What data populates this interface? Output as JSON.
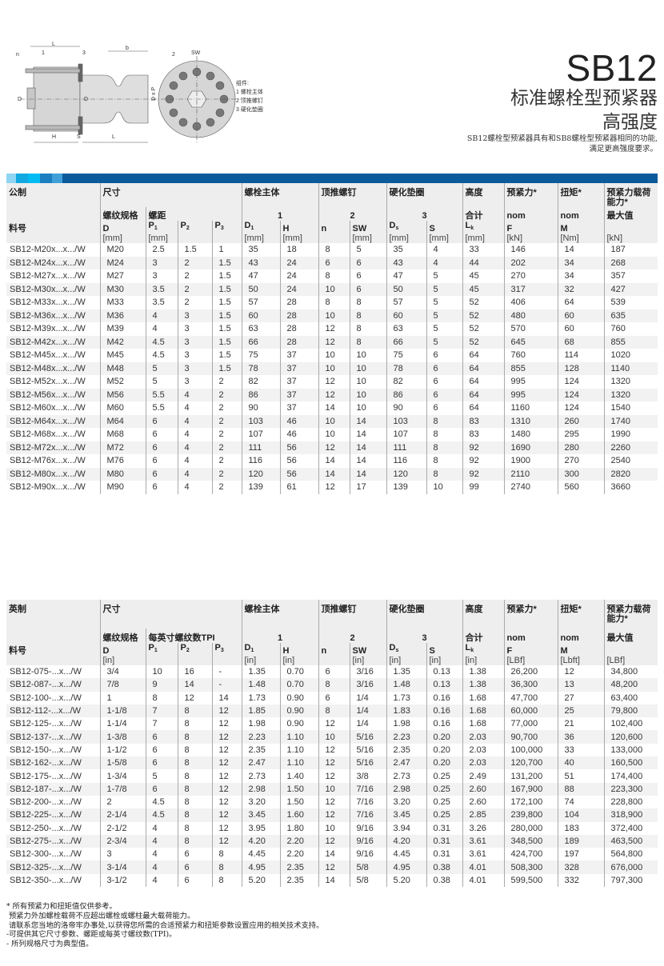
{
  "header": {
    "title": "SB12",
    "subtitle_line1": "标准螺栓型预紧器",
    "subtitle_line2": "高强度",
    "description_line1": "SB12螺栓型预紧器具有和SB8螺栓型预紧器相同的功能,",
    "description_line2": "满足更高强度要求。"
  },
  "diagram": {
    "labels": {
      "n": "n",
      "ly": "L",
      "ly_sub": "y",
      "part1": "1",
      "part3": "3",
      "b": "b",
      "part2": "2",
      "sw": "SW",
      "d1": "D",
      "d1_sub": "1",
      "dt": "D",
      "dt_sub": "t",
      "dxp": "D x P",
      "h": "H",
      "s": "S",
      "l": "L"
    },
    "legend": {
      "title": "组件:",
      "item1": "1 螺栓主体",
      "item2": "2 顶推螺钉",
      "item3": "3 硬化垫圈"
    }
  },
  "colors": {
    "bar_segments": [
      "#8fd4f2",
      "#12a8e0",
      "#00bcf2",
      "#1b7fc2",
      "#3fa0d8"
    ],
    "bar_main": "#0a5a9c",
    "body_gray": "#d6d6d6"
  },
  "metric": {
    "group_label": "公制",
    "part_label": "料号",
    "categories": [
      "尺寸",
      "螺栓主体",
      "顶推螺钉",
      "硬化垫圈",
      "高度",
      "预紧力*",
      "扭矩*",
      "预紧力载荷能力*"
    ],
    "sub": {
      "thread": "螺纹规格",
      "pitch": "螺距",
      "g1": "1",
      "g2": "2",
      "g3": "3",
      "total": "合计",
      "nom1": "nom",
      "nom2": "nom",
      "max": "最大值"
    },
    "symbols": [
      {
        "b": "D"
      },
      {
        "b": "P",
        "s": "1"
      },
      {
        "b": "P",
        "s": "2"
      },
      {
        "b": "P",
        "s": "3"
      },
      {
        "b": "D",
        "s": "1"
      },
      {
        "b": "H"
      },
      {
        "b": "n"
      },
      {
        "b": "SW"
      },
      {
        "b": "D",
        "s": "s"
      },
      {
        "b": "S"
      },
      {
        "b": "L",
        "s": "k"
      },
      {
        "b": "F"
      },
      {
        "b": "M"
      },
      {
        "b": ""
      }
    ],
    "units": [
      "[mm]",
      "[mm]",
      "",
      "",
      "[mm]",
      "[mm]",
      "",
      "[mm]",
      "[mm]",
      "[mm]",
      "[mm]",
      "[kN]",
      "[Nm]",
      "[kN]"
    ],
    "rows": [
      [
        "SB12-M20x...x.../W",
        "M20",
        "2.5",
        "1.5",
        "1",
        "35",
        "18",
        "8",
        "5",
        "35",
        "4",
        "33",
        "146",
        "14",
        "187"
      ],
      [
        "SB12-M24x...x.../W",
        "M24",
        "3",
        "2",
        "1.5",
        "43",
        "24",
        "6",
        "6",
        "43",
        "4",
        "44",
        "202",
        "34",
        "268"
      ],
      [
        "SB12-M27x...x.../W",
        "M27",
        "3",
        "2",
        "1.5",
        "47",
        "24",
        "8",
        "6",
        "47",
        "5",
        "45",
        "270",
        "34",
        "357"
      ],
      [
        "SB12-M30x...x.../W",
        "M30",
        "3.5",
        "2",
        "1.5",
        "50",
        "24",
        "10",
        "6",
        "50",
        "5",
        "45",
        "317",
        "32",
        "427"
      ],
      [
        "SB12-M33x...x.../W",
        "M33",
        "3.5",
        "2",
        "1.5",
        "57",
        "28",
        "8",
        "8",
        "57",
        "5",
        "52",
        "406",
        "64",
        "539"
      ],
      [
        "SB12-M36x...x.../W",
        "M36",
        "4",
        "3",
        "1.5",
        "60",
        "28",
        "10",
        "8",
        "60",
        "5",
        "52",
        "480",
        "60",
        "635"
      ],
      [
        "SB12-M39x...x.../W",
        "M39",
        "4",
        "3",
        "1.5",
        "63",
        "28",
        "12",
        "8",
        "63",
        "5",
        "52",
        "570",
        "60",
        "760"
      ],
      [
        "SB12-M42x...x.../W",
        "M42",
        "4.5",
        "3",
        "1.5",
        "66",
        "28",
        "12",
        "8",
        "66",
        "5",
        "52",
        "645",
        "68",
        "855"
      ],
      [
        "SB12-M45x...x.../W",
        "M45",
        "4.5",
        "3",
        "1.5",
        "75",
        "37",
        "10",
        "10",
        "75",
        "6",
        "64",
        "760",
        "114",
        "1020"
      ],
      [
        "SB12-M48x...x.../W",
        "M48",
        "5",
        "3",
        "1.5",
        "78",
        "37",
        "10",
        "10",
        "78",
        "6",
        "64",
        "855",
        "128",
        "1140"
      ],
      [
        "SB12-M52x...x.../W",
        "M52",
        "5",
        "3",
        "2",
        "82",
        "37",
        "12",
        "10",
        "82",
        "6",
        "64",
        "995",
        "124",
        "1320"
      ],
      [
        "SB12-M56x...x.../W",
        "M56",
        "5.5",
        "4",
        "2",
        "86",
        "37",
        "12",
        "10",
        "86",
        "6",
        "64",
        "995",
        "124",
        "1320"
      ],
      [
        "SB12-M60x...x.../W",
        "M60",
        "5.5",
        "4",
        "2",
        "90",
        "37",
        "14",
        "10",
        "90",
        "6",
        "64",
        "1160",
        "124",
        "1540"
      ],
      [
        "SB12-M64x...x.../W",
        "M64",
        "6",
        "4",
        "2",
        "103",
        "46",
        "10",
        "14",
        "103",
        "8",
        "83",
        "1310",
        "260",
        "1740"
      ],
      [
        "SB12-M68x...x.../W",
        "M68",
        "6",
        "4",
        "2",
        "107",
        "46",
        "10",
        "14",
        "107",
        "8",
        "83",
        "1480",
        "295",
        "1990"
      ],
      [
        "SB12-M72x...x.../W",
        "M72",
        "6",
        "4",
        "2",
        "111",
        "56",
        "12",
        "14",
        "111",
        "8",
        "92",
        "1690",
        "280",
        "2260"
      ],
      [
        "SB12-M76x...x.../W",
        "M76",
        "6",
        "4",
        "2",
        "116",
        "56",
        "14",
        "14",
        "116",
        "8",
        "92",
        "1900",
        "270",
        "2540"
      ],
      [
        "SB12-M80x...x.../W",
        "M80",
        "6",
        "4",
        "2",
        "120",
        "56",
        "14",
        "14",
        "120",
        "8",
        "92",
        "2110",
        "300",
        "2820"
      ],
      [
        "SB12-M90x...x.../W",
        "M90",
        "6",
        "4",
        "2",
        "139",
        "61",
        "12",
        "17",
        "139",
        "10",
        "99",
        "2740",
        "560",
        "3660"
      ]
    ]
  },
  "imperial": {
    "group_label": "英制",
    "part_label": "料号",
    "categories": [
      "尺寸",
      "螺栓主体",
      "顶推螺钉",
      "硬化垫圈",
      "高度",
      "预紧力*",
      "扭矩*",
      "预紧力载荷能力*"
    ],
    "sub": {
      "thread": "螺纹规格",
      "pitch": "每英寸螺纹数TPI",
      "g1": "1",
      "g2": "2",
      "g3": "3",
      "total": "合计",
      "nom1": "nom",
      "nom2": "nom",
      "max": "最大值"
    },
    "symbols": [
      {
        "b": "D"
      },
      {
        "b": "P",
        "s": "1"
      },
      {
        "b": "P",
        "s": "2"
      },
      {
        "b": "P",
        "s": "3"
      },
      {
        "b": "D",
        "s": "1"
      },
      {
        "b": "H"
      },
      {
        "b": "n"
      },
      {
        "b": "SW"
      },
      {
        "b": "D",
        "s": "s"
      },
      {
        "b": "S"
      },
      {
        "b": "L",
        "s": "k"
      },
      {
        "b": "F"
      },
      {
        "b": "M"
      },
      {
        "b": ""
      }
    ],
    "units": [
      "[in]",
      "",
      "",
      "",
      "[in]",
      "[in]",
      "",
      "[in]",
      "[in]",
      "[in]",
      "[in]",
      "[LBf]",
      "[Lbft]",
      "[LBf]"
    ],
    "rows": [
      [
        "SB12-075-...x.../W",
        "3/4",
        "10",
        "16",
        "-",
        "1.35",
        "0.70",
        "6",
        "3/16",
        "1.35",
        "0.13",
        "1.38",
        "26,200",
        "12",
        "34,800"
      ],
      [
        "SB12-087-...x.../W",
        "7/8",
        "9",
        "14",
        "-",
        "1.48",
        "0.70",
        "8",
        "3/16",
        "1.48",
        "0.13",
        "1.38",
        "36,300",
        "13",
        "48,200"
      ],
      [
        "SB12-100-...x.../W",
        "1",
        "8",
        "12",
        "14",
        "1.73",
        "0.90",
        "6",
        "1/4",
        "1.73",
        "0.16",
        "1.68",
        "47,700",
        "27",
        "63,400"
      ],
      [
        "SB12-112-...x.../W",
        "1-1/8",
        "7",
        "8",
        "12",
        "1.85",
        "0.90",
        "8",
        "1/4",
        "1.83",
        "0.16",
        "1.68",
        "60,000",
        "25",
        "79,800"
      ],
      [
        "SB12-125-...x.../W",
        "1-1/4",
        "7",
        "8",
        "12",
        "1.98",
        "0.90",
        "12",
        "1/4",
        "1.98",
        "0.16",
        "1.68",
        "77,000",
        "21",
        "102,400"
      ],
      [
        "SB12-137-...x.../W",
        "1-3/8",
        "6",
        "8",
        "12",
        "2.23",
        "1.10",
        "10",
        "5/16",
        "2.23",
        "0.20",
        "2.03",
        "90,700",
        "36",
        "120,600"
      ],
      [
        "SB12-150-...x.../W",
        "1-1/2",
        "6",
        "8",
        "12",
        "2.35",
        "1.10",
        "12",
        "5/16",
        "2.35",
        "0.20",
        "2.03",
        "100,000",
        "33",
        "133,000"
      ],
      [
        "SB12-162-...x.../W",
        "1-5/8",
        "6",
        "8",
        "12",
        "2.47",
        "1.10",
        "12",
        "5/16",
        "2.47",
        "0.20",
        "2.03",
        "120,700",
        "40",
        "160,500"
      ],
      [
        "SB12-175-...x.../W",
        "1-3/4",
        "5",
        "8",
        "12",
        "2.73",
        "1.40",
        "12",
        "3/8",
        "2.73",
        "0.25",
        "2.49",
        "131,200",
        "51",
        "174,400"
      ],
      [
        "SB12-187-...x.../W",
        "1-7/8",
        "6",
        "8",
        "12",
        "2.98",
        "1.50",
        "10",
        "7/16",
        "2.98",
        "0.25",
        "2.60",
        "167,900",
        "88",
        "223,300"
      ],
      [
        "SB12-200-...x.../W",
        "2",
        "4.5",
        "8",
        "12",
        "3.20",
        "1.50",
        "12",
        "7/16",
        "3.20",
        "0.25",
        "2.60",
        "172,100",
        "74",
        "228,800"
      ],
      [
        "SB12-225-...x.../W",
        "2-1/4",
        "4.5",
        "8",
        "12",
        "3.45",
        "1.60",
        "12",
        "7/16",
        "3.45",
        "0.25",
        "2.85",
        "239,800",
        "104",
        "318,900"
      ],
      [
        "SB12-250-...x.../W",
        "2-1/2",
        "4",
        "8",
        "12",
        "3.95",
        "1.80",
        "10",
        "9/16",
        "3.94",
        "0.31",
        "3.26",
        "280,000",
        "183",
        "372,400"
      ],
      [
        "SB12-275-...x.../W",
        "2-3/4",
        "4",
        "8",
        "12",
        "4.20",
        "2.20",
        "12",
        "9/16",
        "4.20",
        "0.31",
        "3.61",
        "348,500",
        "189",
        "463,500"
      ],
      [
        "SB12-300-...x.../W",
        "3",
        "4",
        "6",
        "8",
        "4.45",
        "2.20",
        "14",
        "9/16",
        "4.45",
        "0.31",
        "3.61",
        "424,700",
        "197",
        "564,800"
      ],
      [
        "SB12-325-...x.../W",
        "3-1/4",
        "4",
        "6",
        "8",
        "4.95",
        "2.35",
        "12",
        "5/8",
        "4.95",
        "0.38",
        "4.01",
        "508,300",
        "328",
        "676,000"
      ],
      [
        "SB12-350-...x.../W",
        "3-1/2",
        "4",
        "6",
        "8",
        "5.20",
        "2.35",
        "14",
        "5/8",
        "5.20",
        "0.38",
        "4.01",
        "599,500",
        "332",
        "797,300"
      ]
    ]
  },
  "notes": [
    "* 所有预紧力和扭矩值仅供参考。",
    " 预紧力外加螺栓载荷不应超出螺栓或螺柱最大载荷能力。",
    " 请联系您当地的洛帝牢办事处,以获得您所需的合适预紧力和扭矩参数设置应用的相关技术支持。",
    "-可提供其它尺寸参数、螺距或每英寸螺纹数(TPI)。",
    "- 所列规格尺寸为典型值。"
  ]
}
